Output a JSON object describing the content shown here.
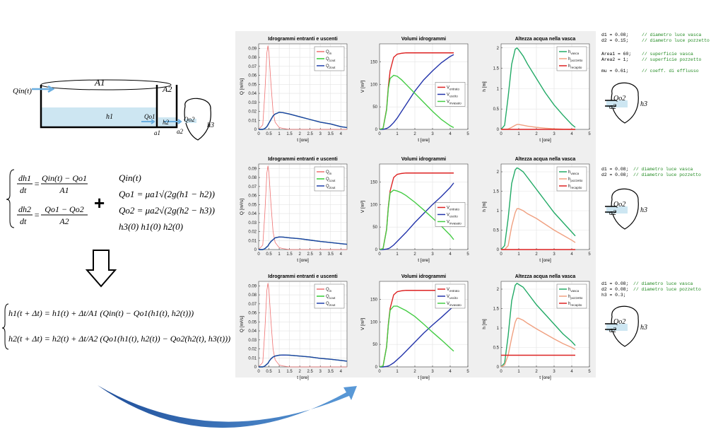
{
  "chart_data": [
    {
      "type": "line",
      "title": "Idrogrammi entranti e uscenti",
      "xlabel": "t [ore]",
      "ylabel": "Q [m³/s]",
      "legend": "upper right",
      "grid": true,
      "xlim": [
        0,
        4.3
      ],
      "xticks": [
        0,
        0.5,
        1,
        1.5,
        2,
        2.5,
        3,
        3.5,
        4
      ],
      "ylim": [
        0,
        0.095
      ],
      "yticks": [
        0,
        0.01,
        0.02,
        0.03,
        0.04,
        0.05,
        0.06,
        0.07,
        0.08,
        0.09
      ],
      "x": [
        0,
        0.2,
        0.3,
        0.4,
        0.45,
        0.5,
        0.6,
        0.7,
        0.8,
        1,
        1.2,
        1.5,
        2,
        2.5,
        3,
        3.5,
        4,
        4.3
      ],
      "series": [
        {
          "name": "Q",
          "sub": "in",
          "color": "#ef7070",
          "values": [
            0,
            0.005,
            0.04,
            0.085,
            0.093,
            0.085,
            0.05,
            0.02,
            0.008,
            0.002,
            0.001,
            0,
            0,
            0,
            0,
            0,
            0,
            0
          ]
        },
        {
          "name": "Q",
          "sub": "1out",
          "color": "#33cc33",
          "values": [
            0,
            0,
            0.001,
            0.003,
            0.005,
            0.007,
            0.011,
            0.015,
            0.017,
            0.019,
            0.0185,
            0.017,
            0.014,
            0.011,
            0.008,
            0.006,
            0.003,
            0.002
          ]
        },
        {
          "name": "Q",
          "sub": "2out",
          "color": "#1f3faa",
          "values": [
            0,
            0,
            0.001,
            0.003,
            0.005,
            0.007,
            0.011,
            0.015,
            0.017,
            0.019,
            0.0185,
            0.017,
            0.014,
            0.011,
            0.008,
            0.006,
            0.003,
            0.002
          ]
        }
      ]
    },
    {
      "type": "line",
      "title": "Volumi idrogrammi",
      "xlabel": "t [ore]",
      "ylabel": "V [m³]",
      "legend": "center right",
      "grid": true,
      "xlim": [
        0,
        5
      ],
      "xticks": [
        0,
        1,
        2,
        3,
        4,
        5
      ],
      "ylim": [
        0,
        190
      ],
      "yticks": [
        0,
        50,
        100,
        150
      ],
      "x": [
        0,
        0.2,
        0.4,
        0.5,
        0.6,
        0.8,
        1,
        1.25,
        1.5,
        2,
        2.5,
        3,
        3.5,
        4,
        4.2
      ],
      "series": [
        {
          "name": "V",
          "sub": "entrato",
          "color": "#dd2222",
          "values": [
            0,
            2,
            45,
            95,
            130,
            160,
            167,
            169,
            170,
            170,
            170,
            170,
            170,
            170,
            170
          ]
        },
        {
          "name": "V",
          "sub": "uscito",
          "color": "#2233aa",
          "values": [
            0,
            0,
            2,
            4,
            7,
            15,
            25,
            40,
            55,
            85,
            110,
            130,
            148,
            162,
            166
          ]
        },
        {
          "name": "V",
          "sub": "invasato",
          "color": "#44cc44",
          "values": [
            0,
            2,
            43,
            91,
            113,
            120,
            118,
            110,
            100,
            80,
            60,
            40,
            22,
            8,
            4
          ]
        }
      ]
    },
    {
      "type": "line",
      "title": "Altezza acqua nella vasca",
      "xlabel": "t [ore]",
      "ylabel": "h [m]",
      "legend": "upper right",
      "grid": true,
      "xlim": [
        0,
        5
      ],
      "xticks": [
        0,
        1,
        2,
        3,
        4,
        5
      ],
      "ylim": [
        0,
        2.1
      ],
      "yticks": [
        0,
        0.5,
        1,
        1.5,
        2
      ],
      "x": [
        0,
        0.2,
        0.4,
        0.6,
        0.8,
        0.9,
        1,
        1.25,
        1.5,
        2,
        2.5,
        3,
        3.5,
        4,
        4.2
      ],
      "series": [
        {
          "name": "h",
          "sub": "vasca",
          "color": "#22aa66",
          "values": [
            0,
            0.1,
            0.8,
            1.6,
            1.97,
            2,
            1.95,
            1.8,
            1.6,
            1.25,
            0.9,
            0.6,
            0.35,
            0.12,
            0.05
          ]
        },
        {
          "name": "h",
          "sub": "pozzetto",
          "color": "#f0a080",
          "values": [
            0,
            0,
            0.01,
            0.05,
            0.1,
            0.12,
            0.12,
            0.1,
            0.08,
            0.05,
            0.03,
            0.015,
            0.005,
            0,
            0
          ]
        },
        {
          "name": "h",
          "sub": "recapito",
          "color": "#dd2222",
          "values": [
            0,
            0,
            0,
            0,
            0,
            0,
            0,
            0,
            0,
            0,
            0,
            0,
            0,
            0,
            0
          ]
        }
      ]
    },
    {
      "type": "line",
      "title": "Idrogrammi entranti e uscenti",
      "xlabel": "t [ore]",
      "ylabel": "Q [m³/s]",
      "legend": "upper right",
      "grid": true,
      "xlim": [
        0,
        4.3
      ],
      "xticks": [
        0,
        0.5,
        1,
        1.5,
        2,
        2.5,
        3,
        3.5,
        4
      ],
      "ylim": [
        0,
        0.095
      ],
      "yticks": [
        0,
        0.01,
        0.02,
        0.03,
        0.04,
        0.05,
        0.06,
        0.07,
        0.08,
        0.09
      ],
      "x": [
        0,
        0.2,
        0.3,
        0.4,
        0.45,
        0.5,
        0.6,
        0.7,
        0.8,
        1,
        1.2,
        1.5,
        2,
        2.5,
        3,
        3.5,
        4,
        4.3
      ],
      "series": [
        {
          "name": "Q",
          "sub": "in",
          "color": "#ef7070",
          "values": [
            0,
            0.005,
            0.04,
            0.085,
            0.093,
            0.085,
            0.05,
            0.02,
            0.008,
            0.002,
            0.001,
            0,
            0,
            0,
            0,
            0,
            0,
            0
          ]
        },
        {
          "name": "Q",
          "sub": "1out",
          "color": "#33cc33",
          "values": [
            0,
            0,
            0.001,
            0.003,
            0.004,
            0.006,
            0.009,
            0.011,
            0.013,
            0.014,
            0.0138,
            0.013,
            0.012,
            0.0105,
            0.009,
            0.0078,
            0.0065,
            0.0058
          ]
        },
        {
          "name": "Q",
          "sub": "2out",
          "color": "#1f3faa",
          "values": [
            0,
            0,
            0.001,
            0.003,
            0.004,
            0.006,
            0.009,
            0.011,
            0.013,
            0.014,
            0.0138,
            0.013,
            0.012,
            0.0105,
            0.009,
            0.0078,
            0.0065,
            0.0058
          ]
        }
      ]
    },
    {
      "type": "line",
      "title": "Volumi idrogrammi",
      "xlabel": "t [ore]",
      "ylabel": "V [m³]",
      "legend": "center right",
      "grid": true,
      "xlim": [
        0,
        5
      ],
      "xticks": [
        0,
        1,
        2,
        3,
        4,
        5
      ],
      "ylim": [
        0,
        190
      ],
      "yticks": [
        0,
        50,
        100,
        150
      ],
      "x": [
        0,
        0.2,
        0.4,
        0.5,
        0.6,
        0.8,
        1,
        1.25,
        1.5,
        2,
        2.5,
        3,
        3.5,
        4,
        4.2
      ],
      "series": [
        {
          "name": "V",
          "sub": "entrato",
          "color": "#dd2222",
          "values": [
            0,
            2,
            45,
            95,
            130,
            160,
            167,
            169,
            170,
            170,
            170,
            170,
            170,
            170,
            170
          ]
        },
        {
          "name": "V",
          "sub": "uscito",
          "color": "#2233aa",
          "values": [
            0,
            0,
            1,
            2,
            4,
            10,
            18,
            28,
            38,
            60,
            80,
            100,
            118,
            138,
            148
          ]
        },
        {
          "name": "V",
          "sub": "invasato",
          "color": "#44cc44",
          "values": [
            0,
            2,
            44,
            93,
            126,
            132,
            130,
            126,
            120,
            105,
            88,
            70,
            52,
            32,
            22
          ]
        }
      ]
    },
    {
      "type": "line",
      "title": "Altezza acqua nella vasca",
      "xlabel": "t [ore]",
      "ylabel": "h [m]",
      "legend": "upper right",
      "grid": true,
      "xlim": [
        0,
        5
      ],
      "xticks": [
        0,
        1,
        2,
        3,
        4,
        5
      ],
      "ylim": [
        0,
        2.2
      ],
      "yticks": [
        0,
        0.5,
        1,
        1.5,
        2
      ],
      "x": [
        0,
        0.2,
        0.4,
        0.6,
        0.8,
        0.9,
        1,
        1.25,
        1.5,
        2,
        2.5,
        3,
        3.5,
        4,
        4.2
      ],
      "series": [
        {
          "name": "h",
          "sub": "vasca",
          "color": "#22aa66",
          "values": [
            0,
            0.1,
            0.8,
            1.7,
            2.05,
            2.1,
            2.08,
            2,
            1.85,
            1.55,
            1.25,
            0.95,
            0.7,
            0.45,
            0.35
          ]
        },
        {
          "name": "h",
          "sub": "pozzetto",
          "color": "#f0a080",
          "values": [
            0,
            0,
            0.1,
            0.6,
            0.95,
            1.05,
            1.05,
            1,
            0.92,
            0.8,
            0.65,
            0.5,
            0.37,
            0.24,
            0.18
          ]
        },
        {
          "name": "h",
          "sub": "recapito",
          "color": "#dd2222",
          "values": [
            0,
            0,
            0,
            0,
            0,
            0,
            0,
            0,
            0,
            0,
            0,
            0,
            0,
            0,
            0
          ]
        }
      ]
    },
    {
      "type": "line",
      "title": "Idrogrammi entranti e uscenti",
      "xlabel": "t [ore]",
      "ylabel": "Q [m³/s]",
      "legend": "upper right",
      "grid": true,
      "xlim": [
        0,
        4.3
      ],
      "xticks": [
        0,
        0.5,
        1,
        1.5,
        2,
        2.5,
        3,
        3.5,
        4
      ],
      "ylim": [
        0,
        0.095
      ],
      "yticks": [
        0,
        0.01,
        0.02,
        0.03,
        0.04,
        0.05,
        0.06,
        0.07,
        0.08,
        0.09
      ],
      "x": [
        0,
        0.2,
        0.3,
        0.4,
        0.45,
        0.5,
        0.6,
        0.7,
        0.8,
        1,
        1.2,
        1.5,
        2,
        2.5,
        3,
        3.5,
        4,
        4.3
      ],
      "series": [
        {
          "name": "Q",
          "sub": "in",
          "color": "#ef7070",
          "values": [
            0,
            0.005,
            0.04,
            0.085,
            0.093,
            0.085,
            0.05,
            0.02,
            0.008,
            0.002,
            0.001,
            0,
            0,
            0,
            0,
            0,
            0,
            0
          ]
        },
        {
          "name": "Q",
          "sub": "1out",
          "color": "#33cc33",
          "values": [
            0,
            0,
            0.001,
            0.003,
            0.004,
            0.006,
            0.009,
            0.011,
            0.012,
            0.013,
            0.0132,
            0.013,
            0.012,
            0.011,
            0.0095,
            0.0085,
            0.0072,
            0.0063
          ]
        },
        {
          "name": "Q",
          "sub": "2out",
          "color": "#1f3faa",
          "values": [
            0,
            0,
            0.001,
            0.003,
            0.004,
            0.006,
            0.009,
            0.011,
            0.012,
            0.013,
            0.0132,
            0.013,
            0.012,
            0.011,
            0.0095,
            0.0085,
            0.0072,
            0.0063
          ]
        }
      ]
    },
    {
      "type": "line",
      "title": "Volumi idrogrammi",
      "xlabel": "t [ore]",
      "ylabel": "V [m³]",
      "legend": "upper right",
      "grid": true,
      "xlim": [
        0,
        5
      ],
      "xticks": [
        0,
        1,
        2,
        3,
        4,
        5
      ],
      "ylim": [
        0,
        190
      ],
      "yticks": [
        0,
        50,
        100,
        150
      ],
      "x": [
        0,
        0.2,
        0.4,
        0.5,
        0.6,
        0.8,
        1,
        1.25,
        1.5,
        2,
        2.5,
        3,
        3.5,
        4,
        4.2
      ],
      "series": [
        {
          "name": "V",
          "sub": "entrato",
          "color": "#dd2222",
          "values": [
            0,
            2,
            45,
            95,
            130,
            160,
            167,
            169,
            170,
            170,
            170,
            170,
            170,
            170,
            170
          ]
        },
        {
          "name": "V",
          "sub": "uscito",
          "color": "#2233aa",
          "values": [
            0,
            0,
            1,
            2,
            4,
            9,
            16,
            25,
            35,
            55,
            75,
            93,
            110,
            128,
            135
          ]
        },
        {
          "name": "V",
          "sub": "invasato",
          "color": "#44cc44",
          "values": [
            0,
            2,
            44,
            93,
            126,
            135,
            135,
            130,
            125,
            112,
            95,
            77,
            60,
            42,
            35
          ]
        }
      ]
    },
    {
      "type": "line",
      "title": "Altezza acqua nella vasca",
      "xlabel": "t [ore]",
      "ylabel": "h [m]",
      "legend": "upper right",
      "grid": true,
      "xlim": [
        0,
        5
      ],
      "xticks": [
        0,
        1,
        2,
        3,
        4,
        5
      ],
      "ylim": [
        0,
        2.2
      ],
      "yticks": [
        0,
        0.5,
        1,
        1.5,
        2
      ],
      "x": [
        0,
        0.2,
        0.4,
        0.6,
        0.8,
        0.9,
        1,
        1.25,
        1.5,
        2,
        2.5,
        3,
        3.5,
        4,
        4.2
      ],
      "series": [
        {
          "name": "h",
          "sub": "vasca",
          "color": "#22aa66",
          "values": [
            0,
            0.1,
            0.8,
            1.7,
            2.1,
            2.15,
            2.12,
            2.05,
            1.9,
            1.6,
            1.35,
            1.1,
            0.85,
            0.65,
            0.55
          ]
        },
        {
          "name": "h",
          "sub": "pozzetto",
          "color": "#f0a080",
          "values": [
            0,
            0.05,
            0.3,
            0.75,
            1.15,
            1.25,
            1.25,
            1.2,
            1.12,
            0.98,
            0.85,
            0.72,
            0.6,
            0.5,
            0.45
          ]
        },
        {
          "name": "h",
          "sub": "recapito",
          "color": "#dd2222",
          "values": [
            0.3,
            0.3,
            0.3,
            0.3,
            0.3,
            0.3,
            0.3,
            0.3,
            0.3,
            0.3,
            0.3,
            0.3,
            0.3,
            0.3,
            0.3
          ]
        }
      ]
    }
  ],
  "diagram": {
    "labels": [
      "Qin(t)",
      "A1",
      "A2",
      "h1",
      "Qo1",
      "h2",
      "Qo2",
      "a1",
      "a2",
      "h3"
    ]
  },
  "equations": {
    "system": [
      {
        "lhs_num": "dh1",
        "lhs_den": "dt",
        "rhs_num": "Qin(t) − Qo1",
        "rhs_den": "A1"
      },
      {
        "lhs_num": "dh2",
        "lhs_den": "dt",
        "rhs_num": "Qo1 − Qo2",
        "rhs_den": "A2"
      }
    ],
    "plus": "+",
    "definitions": [
      "Qin(t)",
      "Qo1 = μa1√(2g(h1 − h2))",
      "Qo2 = μa2√(2g(h2 − h3))",
      "h3(0)  h1(0)  h2(0)"
    ],
    "update": [
      "h1(t + Δt) = h1(t) + Δt/A1 (Qin(t) − Qo1(h1(t), h2(t)))",
      "h2(t + Δt) = h2(t) + Δt/A2 (Qo1(h1(t), h2(t)) − Qo2(h2(t), h3(t)))"
    ]
  },
  "code": [
    [
      {
        "code": "d1 = 0.08;",
        "comment": "// diametro luce vasca"
      },
      {
        "code": "d2 = 0.15;",
        "comment": "// diametro luce pozzetto"
      },
      {
        "code": "Area1 = 60;",
        "comment": "// superficie vasca"
      },
      {
        "code": "Area2 = 1;",
        "comment": "// superficie pozzetto"
      },
      {
        "code": "mu = 0.61;",
        "comment": "// coeff. di efflusso"
      }
    ],
    [
      {
        "code": "d1 = 0.08;",
        "comment": "// diametro luce vasca"
      },
      {
        "code": "d2 = 0.08;",
        "comment": "// diametro luce pozzetto"
      }
    ],
    [
      {
        "code": "d1 = 0.08;",
        "comment": "// diametro luce vasca"
      },
      {
        "code": "d2 = 0.08;",
        "comment": "// diametro luce pozzetto"
      },
      {
        "code": "h3 = 0.3;",
        "comment": ""
      }
    ]
  ],
  "icons": [
    {
      "labels": [
        "Qo2",
        "a2",
        "h3"
      ]
    },
    {
      "labels": [
        "Qo2",
        "a2",
        "h3"
      ]
    },
    {
      "labels": [
        "Qo2",
        "a2",
        "h3"
      ]
    }
  ]
}
